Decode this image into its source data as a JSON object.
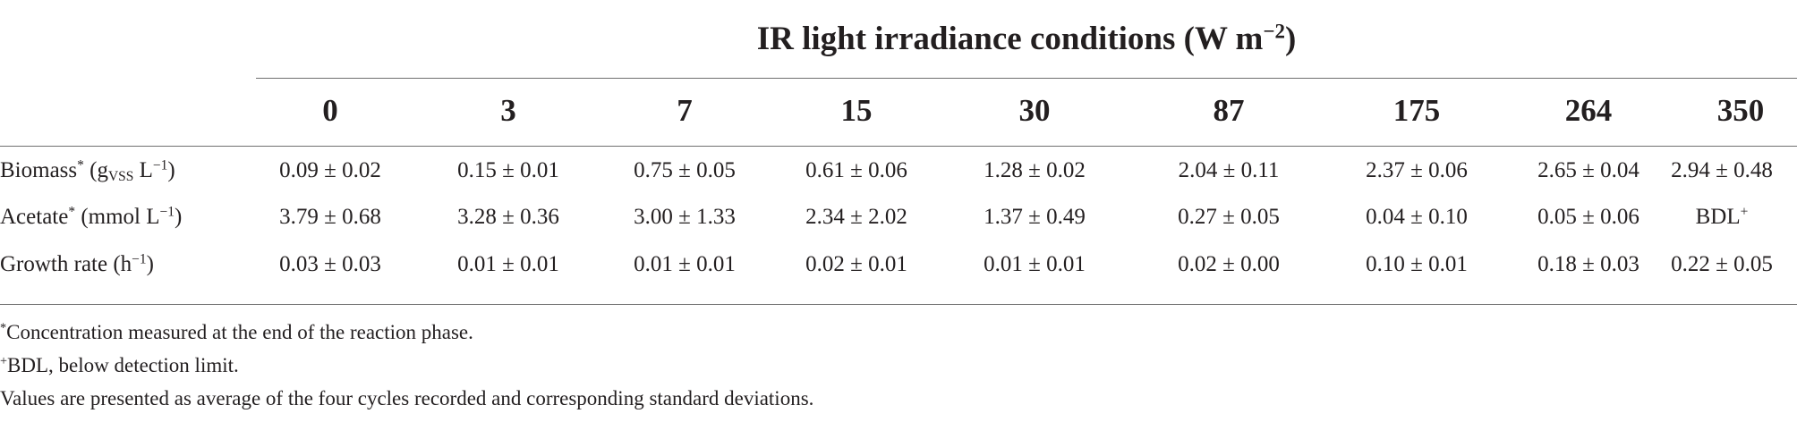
{
  "table": {
    "group_header": {
      "text": "IR light irradiance conditions (W m",
      "sup": "−2",
      "close": ")"
    },
    "columns": [
      "0",
      "3",
      "7",
      "15",
      "30",
      "87",
      "175",
      "264",
      "350"
    ],
    "rows": [
      {
        "label": "Biomass",
        "label_sup": "*",
        "unit_open": " (g",
        "unit_sub": "VSS",
        "unit_rest": " L",
        "unit_sup": "−1",
        "unit_close": ")",
        "values": [
          "0.09 ± 0.02",
          "0.15 ± 0.01",
          "0.75 ± 0.05",
          "0.61 ± 0.06",
          "1.28 ± 0.02",
          "2.04 ± 0.11",
          "2.37 ± 0.06",
          "2.65 ± 0.04",
          "2.94 ± 0.48"
        ]
      },
      {
        "label": "Acetate",
        "label_sup": "*",
        "unit_open": " (mmol L",
        "unit_sup": "−1",
        "unit_close": ")",
        "values": [
          "3.79 ± 0.68",
          "3.28 ± 0.36",
          "3.00 ± 1.33",
          "2.34 ± 2.02",
          "1.37 ± 0.49",
          "0.27 ± 0.05",
          "0.04 ± 0.10",
          "0.05 ± 0.06",
          "BDL"
        ],
        "last_value_sup": "+"
      },
      {
        "label": "Growth rate",
        "unit_open": " (h",
        "unit_sup": "−1",
        "unit_close": ")",
        "values": [
          "0.03 ± 0.03",
          "0.01 ± 0.01",
          "0.01 ± 0.01",
          "0.02 ± 0.01",
          "0.01 ± 0.01",
          "0.02 ± 0.00",
          "0.10 ± 0.01",
          "0.18 ± 0.03",
          "0.22 ± 0.05"
        ]
      }
    ]
  },
  "footnotes": [
    {
      "mark": "*",
      "text": "Concentration measured at the end of the reaction phase."
    },
    {
      "mark": "+",
      "text": "BDL, below detection limit."
    },
    {
      "mark": "",
      "text": "Values are presented as average of the four cycles recorded and corresponding standard deviations."
    }
  ]
}
